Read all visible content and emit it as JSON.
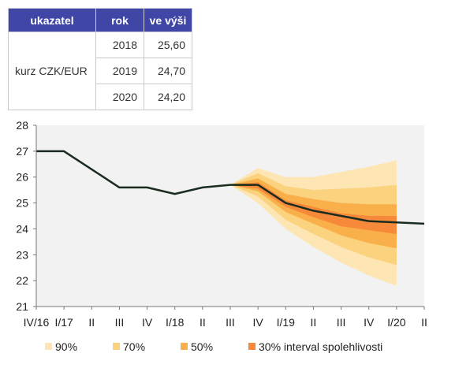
{
  "table": {
    "headers": [
      "ukazatel",
      "rok",
      "ve výši"
    ],
    "indicator": "kurz CZK/EUR",
    "rows": [
      {
        "year": "2018",
        "value": "25,60"
      },
      {
        "year": "2019",
        "value": "24,70"
      },
      {
        "year": "2020",
        "value": "24,20"
      }
    ]
  },
  "chart_data": {
    "type": "area",
    "title": "",
    "xlabel": "",
    "ylabel": "",
    "ylim": [
      21,
      28
    ],
    "yticks": [
      "21",
      "22",
      "23",
      "24",
      "25",
      "26",
      "27",
      "28"
    ],
    "categories": [
      "IV/16",
      "I/17",
      "II",
      "III",
      "IV",
      "I/18",
      "II",
      "III",
      "IV",
      "I/19",
      "II",
      "III",
      "IV",
      "I/20",
      "II"
    ],
    "central_forecast": [
      27.0,
      27.0,
      26.3,
      25.6,
      25.6,
      25.35,
      25.6,
      25.7,
      25.7,
      25.0,
      24.7,
      24.5,
      24.3,
      24.25,
      24.2
    ],
    "fan_start_index": 7,
    "bands": [
      {
        "name": "90%",
        "color": "#fde6b3",
        "upper": [
          25.7,
          26.35,
          26.0,
          26.0,
          26.2,
          26.4,
          26.65
        ],
        "lower": [
          25.7,
          25.0,
          24.0,
          23.3,
          22.7,
          22.2,
          21.8
        ]
      },
      {
        "name": "70%",
        "color": "#fbd27e",
        "upper": [
          25.7,
          26.15,
          25.65,
          25.5,
          25.55,
          25.6,
          25.7
        ],
        "lower": [
          25.7,
          25.25,
          24.35,
          23.8,
          23.3,
          22.9,
          22.6
        ]
      },
      {
        "name": "50%",
        "color": "#f9b04a",
        "upper": [
          25.7,
          25.95,
          25.35,
          25.15,
          25.0,
          24.95,
          24.95
        ],
        "lower": [
          25.7,
          25.45,
          24.65,
          24.2,
          23.75,
          23.45,
          23.25
        ]
      },
      {
        "name": "30% interval spolehlivosti",
        "color": "#f68a3a",
        "upper": [
          25.7,
          25.8,
          25.1,
          24.85,
          24.6,
          24.5,
          24.5
        ],
        "lower": [
          25.7,
          25.55,
          24.85,
          24.45,
          24.1,
          23.95,
          23.8
        ]
      }
    ],
    "legend_position": "bottom",
    "grid": false,
    "line_color": "#1a2b1f"
  }
}
